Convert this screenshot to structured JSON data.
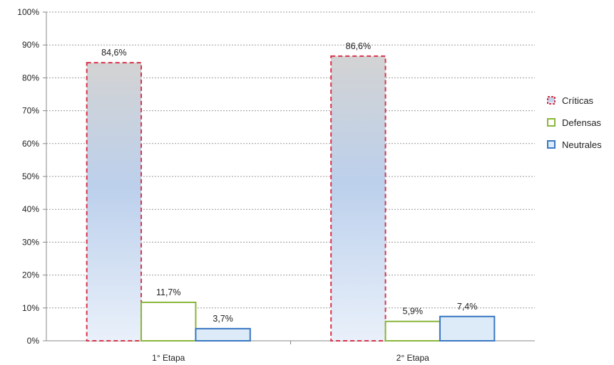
{
  "chart_data": {
    "type": "bar",
    "categories": [
      "1° Etapa",
      "2° Etapa"
    ],
    "series": [
      {
        "name": "Críticas",
        "values": [
          84.6,
          86.6
        ],
        "labels": [
          "84,6%",
          "86,6%"
        ],
        "border_color": "#d7344b",
        "border_style": "dashed",
        "fill": "gradient-gray-blue"
      },
      {
        "name": "Defensas",
        "values": [
          11.7,
          5.9
        ],
        "labels": [
          "11,7%",
          "5,9%"
        ],
        "border_color": "#8ab63a",
        "border_style": "solid",
        "fill": "#ffffff"
      },
      {
        "name": "Neutrales",
        "values": [
          3.7,
          7.4
        ],
        "labels": [
          "3,7%",
          "7,4%"
        ],
        "border_color": "#3a78c3",
        "border_style": "solid",
        "fill": "#dcebf7"
      }
    ],
    "ylim": [
      0,
      100
    ],
    "yticks": [
      "0%",
      "10%",
      "20%",
      "30%",
      "40%",
      "50%",
      "60%",
      "70%",
      "80%",
      "90%",
      "100%"
    ],
    "grid": true,
    "legend_position": "right",
    "title": "",
    "xlabel": "",
    "ylabel": ""
  }
}
